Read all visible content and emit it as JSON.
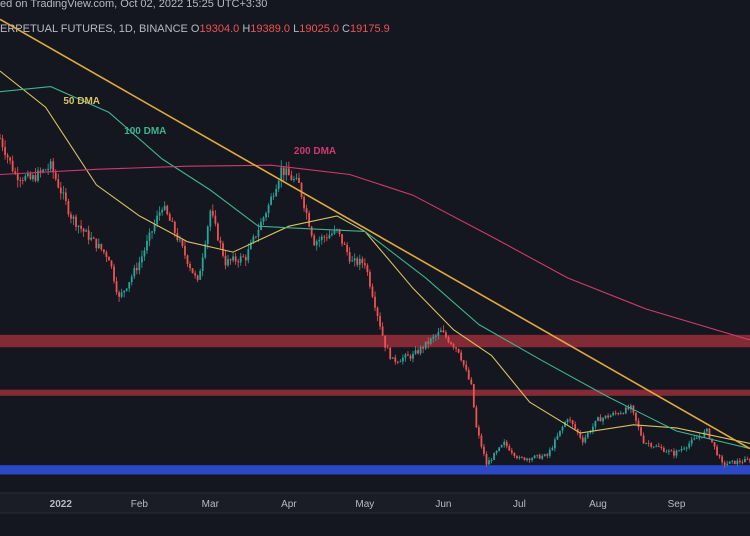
{
  "header": {
    "published_line": "ed on TradingView.com, Oct 02, 2022 15:25 UTC+3:30",
    "symbol_line": "ERPETUAL FUTURES, 1D, BINANCE",
    "ohlc": [
      {
        "k": "O",
        "v": "19304.0"
      },
      {
        "k": "H",
        "v": "19389.0"
      },
      {
        "k": "L",
        "v": "19025.0"
      },
      {
        "k": "C",
        "v": "19175.9"
      }
    ]
  },
  "chart_data": {
    "type": "candlestick",
    "x_range": [
      "2021-12-08",
      "2022-09-30"
    ],
    "y_range": [
      16500,
      60000
    ],
    "x_ticks": [
      {
        "date": "2022-01-01",
        "label": "2022"
      },
      {
        "date": "2022-02-01",
        "label": "Feb"
      },
      {
        "date": "2022-03-01",
        "label": "Mar"
      },
      {
        "date": "2022-04-01",
        "label": "Apr"
      },
      {
        "date": "2022-05-01",
        "label": "May"
      },
      {
        "date": "2022-06-01",
        "label": "Jun"
      },
      {
        "date": "2022-07-01",
        "label": "Jul"
      },
      {
        "date": "2022-08-01",
        "label": "Aug"
      },
      {
        "date": "2022-09-01",
        "label": "Sep"
      }
    ],
    "price_path": [
      [
        "2021-12-08",
        50500
      ],
      [
        "2021-12-14",
        47000
      ],
      [
        "2021-12-20",
        46500
      ],
      [
        "2021-12-28",
        47800
      ],
      [
        "2022-01-05",
        43000
      ],
      [
        "2022-01-10",
        41500
      ],
      [
        "2022-01-20",
        39000
      ],
      [
        "2022-01-24",
        35000
      ],
      [
        "2022-02-01",
        38500
      ],
      [
        "2022-02-10",
        44000
      ],
      [
        "2022-02-14",
        42000
      ],
      [
        "2022-02-24",
        36500
      ],
      [
        "2022-03-01",
        43500
      ],
      [
        "2022-03-07",
        38500
      ],
      [
        "2022-03-15",
        39000
      ],
      [
        "2022-03-24",
        44000
      ],
      [
        "2022-03-29",
        47500
      ],
      [
        "2022-04-05",
        46000
      ],
      [
        "2022-04-11",
        40500
      ],
      [
        "2022-04-20",
        41500
      ],
      [
        "2022-04-26",
        38500
      ],
      [
        "2022-05-01",
        38500
      ],
      [
        "2022-05-09",
        30500
      ],
      [
        "2022-05-12",
        29000
      ],
      [
        "2022-05-20",
        29500
      ],
      [
        "2022-05-31",
        31800
      ],
      [
        "2022-06-07",
        30000
      ],
      [
        "2022-06-12",
        26500
      ],
      [
        "2022-06-14",
        22500
      ],
      [
        "2022-06-18",
        19000
      ],
      [
        "2022-06-25",
        21000
      ],
      [
        "2022-07-01",
        19500
      ],
      [
        "2022-07-12",
        19800
      ],
      [
        "2022-07-20",
        23500
      ],
      [
        "2022-07-26",
        21300
      ],
      [
        "2022-08-01",
        23300
      ],
      [
        "2022-08-14",
        24400
      ],
      [
        "2022-08-19",
        21200
      ],
      [
        "2022-08-31",
        20000
      ],
      [
        "2022-09-09",
        21500
      ],
      [
        "2022-09-13",
        22200
      ],
      [
        "2022-09-19",
        19000
      ],
      [
        "2022-09-30",
        19400
      ]
    ],
    "moving_averages": [
      {
        "name": "50 DMA",
        "label": "50 DMA",
        "color": "#d8c25e",
        "points": [
          [
            "2021-12-08",
            57000
          ],
          [
            "2021-12-26",
            53500
          ],
          [
            "2022-01-15",
            46000
          ],
          [
            "2022-02-01",
            43000
          ],
          [
            "2022-02-20",
            40500
          ],
          [
            "2022-03-10",
            39500
          ],
          [
            "2022-04-01",
            42000
          ],
          [
            "2022-04-20",
            43000
          ],
          [
            "2022-05-01",
            41500
          ],
          [
            "2022-05-20",
            36000
          ],
          [
            "2022-06-05",
            32000
          ],
          [
            "2022-06-20",
            29500
          ],
          [
            "2022-07-05",
            25000
          ],
          [
            "2022-07-25",
            22000
          ],
          [
            "2022-08-15",
            22800
          ],
          [
            "2022-09-01",
            22500
          ],
          [
            "2022-09-30",
            21000
          ]
        ]
      },
      {
        "name": "100 DMA",
        "label": "100 DMA",
        "color": "#3fb38f",
        "points": [
          [
            "2021-12-08",
            55000
          ],
          [
            "2021-12-28",
            55500
          ],
          [
            "2022-01-20",
            53000
          ],
          [
            "2022-02-10",
            48500
          ],
          [
            "2022-03-01",
            45500
          ],
          [
            "2022-03-20",
            42000
          ],
          [
            "2022-04-05",
            41800
          ],
          [
            "2022-05-01",
            41500
          ],
          [
            "2022-05-25",
            37000
          ],
          [
            "2022-06-15",
            32500
          ],
          [
            "2022-07-10",
            29000
          ],
          [
            "2022-08-05",
            25500
          ],
          [
            "2022-09-01",
            22200
          ],
          [
            "2022-09-30",
            20500
          ]
        ]
      },
      {
        "name": "200 DMA",
        "label": "200 DMA",
        "color": "#cf3a70",
        "points": [
          [
            "2021-12-08",
            47000
          ],
          [
            "2022-01-15",
            47500
          ],
          [
            "2022-02-20",
            47800
          ],
          [
            "2022-03-25",
            47900
          ],
          [
            "2022-04-25",
            47000
          ],
          [
            "2022-05-20",
            45000
          ],
          [
            "2022-06-20",
            41000
          ],
          [
            "2022-07-20",
            37000
          ],
          [
            "2022-08-20",
            34000
          ],
          [
            "2022-09-30",
            31000
          ]
        ]
      }
    ],
    "trendline": {
      "color": "#e0a93b",
      "points": [
        [
          "2021-12-08",
          62000
        ],
        [
          "2022-09-30",
          20500
        ]
      ]
    },
    "zones": [
      {
        "name": "upper resistance",
        "color": "#8e2e3a",
        "y_top": 31500,
        "y_bottom": 30300
      },
      {
        "name": "lower resistance",
        "color": "#8e2e3a",
        "y_top": 26200,
        "y_bottom": 25600
      },
      {
        "name": "support",
        "color": "#2e4fd6",
        "y_top": 18900,
        "y_bottom": 18000
      }
    ],
    "candle_colors": {
      "up": "#26a69a",
      "down": "#ef5350"
    },
    "seed": 7
  }
}
